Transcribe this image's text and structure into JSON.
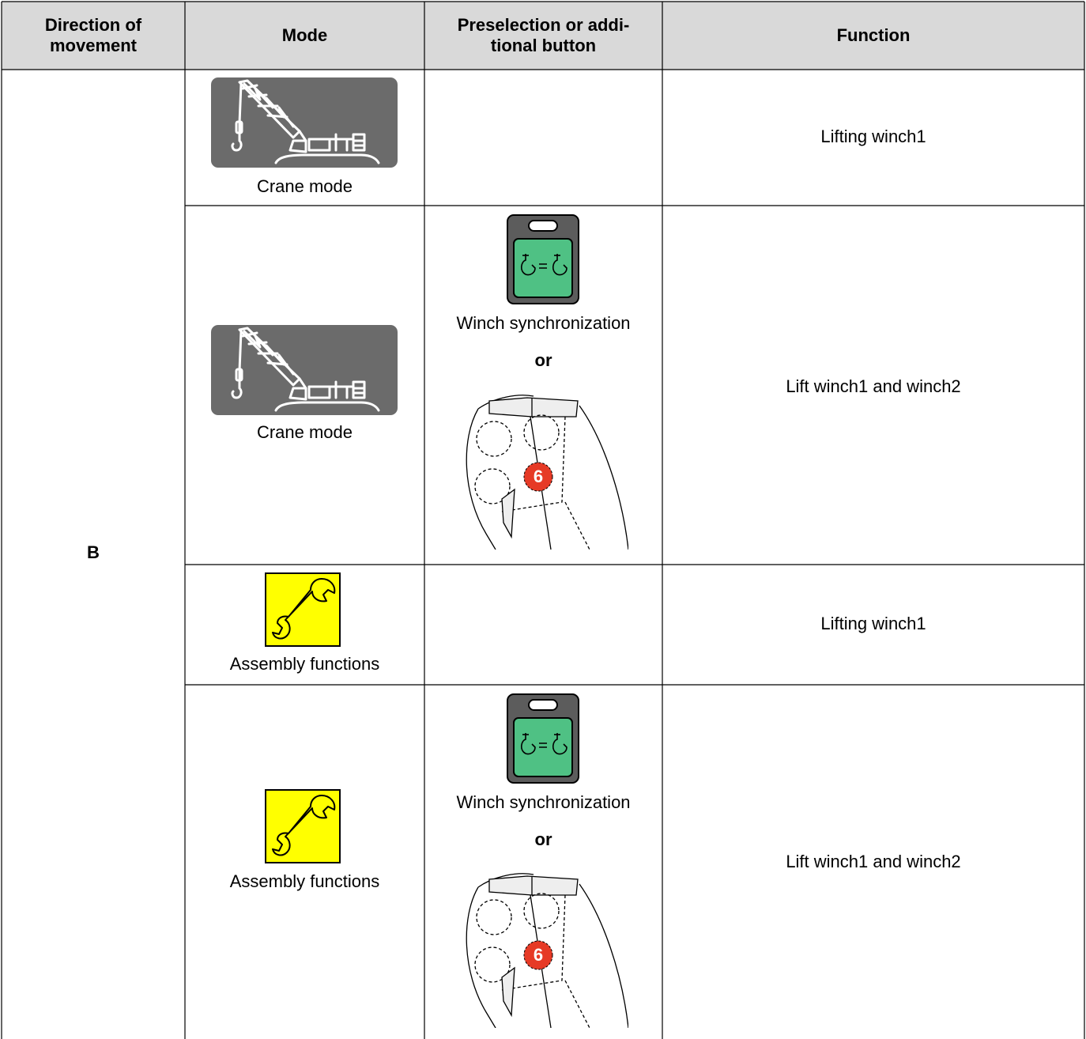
{
  "table": {
    "header": [
      [
        "Direction of",
        "movement"
      ],
      [
        "Mode"
      ],
      [
        "Preselection or addi-",
        "tional button"
      ],
      [
        "Function"
      ]
    ],
    "direction": "B",
    "rows": [
      {
        "mode": "Crane mode",
        "function": "Lifting winch1"
      },
      {
        "mode": "Crane mode",
        "preselection": {
          "button": "Winch synchronization",
          "or": "or",
          "lever_button": "6"
        },
        "function": "Lift winch1 and winch2"
      },
      {
        "mode": "Assembly functions",
        "function": "Lifting winch1"
      },
      {
        "mode": "Assembly functions",
        "preselection": {
          "button": "Winch synchronization",
          "or": "or",
          "lever_button": "6"
        },
        "function": "Lift winch1 and winch2"
      }
    ]
  }
}
